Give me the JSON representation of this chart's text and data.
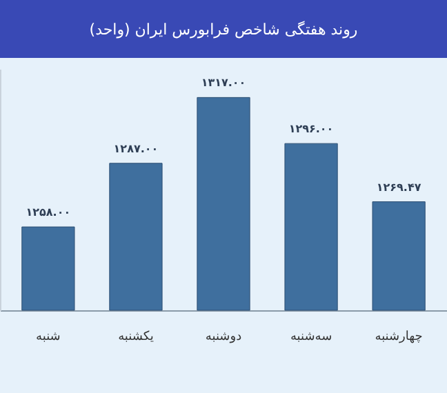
{
  "chart_data": {
    "type": "bar",
    "title": "روند هفتگی شاخص فرابورس ایران (واحد)",
    "categories": [
      "شنبه",
      "یکشنبه",
      "دوشنبه",
      "سه‌شنبه",
      "چهارشنبه"
    ],
    "values": [
      1258.0,
      1287.0,
      1317.0,
      1296.0,
      1269.47
    ],
    "value_labels": [
      "۱۲۵۸.۰۰",
      "۱۲۸۷.۰۰",
      "۱۳۱۷.۰۰",
      "۱۲۹۶.۰۰",
      "۱۲۶۹.۴۷"
    ],
    "color": "#3f6f9e",
    "ylim": [
      1220,
      1330
    ],
    "tick_labels": "x"
  }
}
